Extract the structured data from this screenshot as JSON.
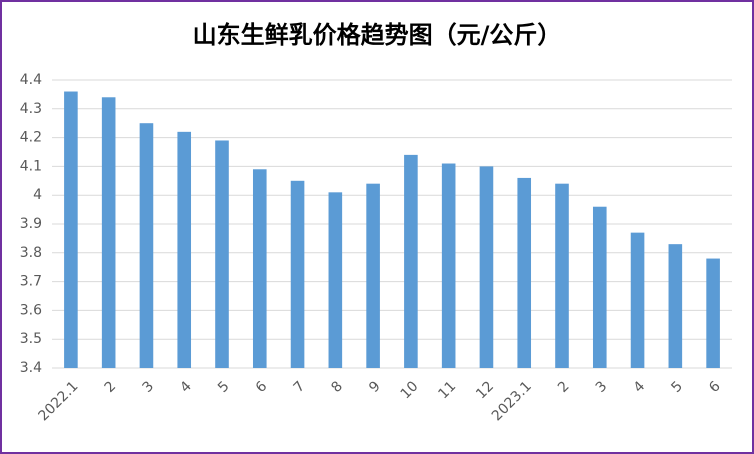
{
  "chart_data": {
    "type": "bar",
    "title": "山东生鲜乳价格趋势图（元/公斤）",
    "categories": [
      "2022.1",
      "2",
      "3",
      "4",
      "5",
      "6",
      "7",
      "8",
      "9",
      "10",
      "11",
      "12",
      "2023.1",
      "2",
      "3",
      "4",
      "5",
      "6"
    ],
    "values": [
      4.36,
      4.34,
      4.25,
      4.22,
      4.19,
      4.09,
      4.05,
      4.01,
      4.04,
      4.14,
      4.11,
      4.1,
      4.06,
      4.04,
      3.96,
      3.87,
      3.83,
      3.78
    ],
    "color": "#5b9bd5",
    "ylim": [
      3.4,
      4.4
    ],
    "yticks": [
      3.4,
      3.5,
      3.6,
      3.7,
      3.8,
      3.9,
      4,
      4.1,
      4.2,
      4.3,
      4.4
    ],
    "grid": true
  }
}
